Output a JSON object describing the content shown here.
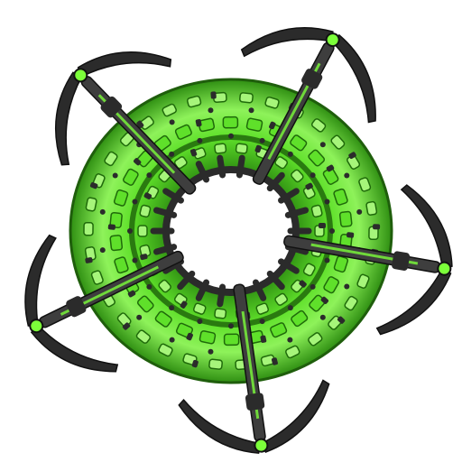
{
  "sprite": {
    "subject": "ring-space-station",
    "arm_count": 5,
    "colors": {
      "background": "#ffffff",
      "hull_green": "#5fe02a",
      "hull_green_dark": "#2f8f12",
      "hull_green_light": "#a6f57a",
      "metal_dark": "#2b2b2b",
      "metal_mid": "#3e3e3e",
      "metal_light": "#5a5a5a",
      "accent_green": "#7cff3a"
    }
  }
}
